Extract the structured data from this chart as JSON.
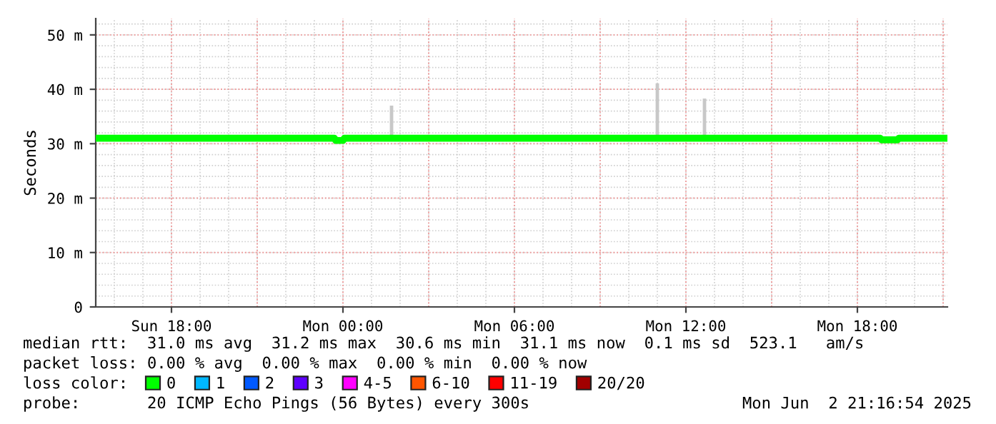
{
  "chart_data": {
    "type": "line",
    "ylabel": "Seconds",
    "legend_title": "loss color:",
    "legend": "bottom",
    "grid": true,
    "xlim": [
      "2025-06-01T15:21",
      "2025-06-02T21:09"
    ],
    "xticks": [
      {
        "value": "2025-06-01T18:00",
        "label": "Sun 18:00"
      },
      {
        "value": "2025-06-02T00:00",
        "label": "Mon 00:00"
      },
      {
        "value": "2025-06-02T06:00",
        "label": "Mon 06:00"
      },
      {
        "value": "2025-06-02T12:00",
        "label": "Mon 12:00"
      },
      {
        "value": "2025-06-02T18:00",
        "label": "Mon 18:00"
      }
    ],
    "ylim": [
      0,
      53
    ],
    "yticks": [
      0,
      {
        "value": 10,
        "label": "10 m"
      },
      {
        "value": 20,
        "label": "20 m"
      },
      {
        "value": 30,
        "label": "30 m"
      },
      {
        "value": 40,
        "label": "40 m"
      },
      {
        "value": 50,
        "label": "50 m"
      }
    ],
    "series": [
      {
        "type": "bar",
        "color": "#c8c8c8",
        "x": [
          "2025-06-02T01:42",
          "2025-06-02T11:00",
          "2025-06-02T12:39"
        ],
        "base": [
          31.0,
          31.5,
          31.0
        ],
        "values": [
          6.0,
          9.6,
          7.3
        ]
      },
      {
        "name": "0",
        "color": "#00ff00",
        "x": [
          "2025-06-01T15:21",
          "2025-06-01T23:42",
          "2025-06-01T23:45",
          "2025-06-02T00:00",
          "2025-06-02T00:03",
          "2025-06-02T18:48",
          "2025-06-02T18:51",
          "2025-06-02T19:24",
          "2025-06-02T19:27",
          "2025-06-02T21:09"
        ],
        "values": [
          31.0,
          31.0,
          30.6,
          30.6,
          31.0,
          31.0,
          30.7,
          30.7,
          31.0,
          31.0
        ]
      },
      {
        "name": "1",
        "color": "#00b8ff"
      },
      {
        "name": "2",
        "color": "#0059ff"
      },
      {
        "name": "3",
        "color": "#5e00ff"
      },
      {
        "name": "4-5",
        "color": "#ff00ff"
      },
      {
        "name": "6-10",
        "color": "#ff5500"
      },
      {
        "name": "11-19",
        "color": "#ff0000"
      },
      {
        "name": "20/20",
        "color": "#a10000"
      }
    ],
    "annotations": [
      "median rtt:  31.0 ms avg  31.2 ms max  30.6 ms min  31.1 ms now  0.1 ms sd  523.1   am/s",
      "packet loss: 0.00 % avg  0.00 % max  0.00 % min  0.00 % now",
      "probe:       20 ICMP Echo Pings (56 Bytes) every 300s",
      "Mon Jun  2 21:16:54 2025"
    ]
  }
}
